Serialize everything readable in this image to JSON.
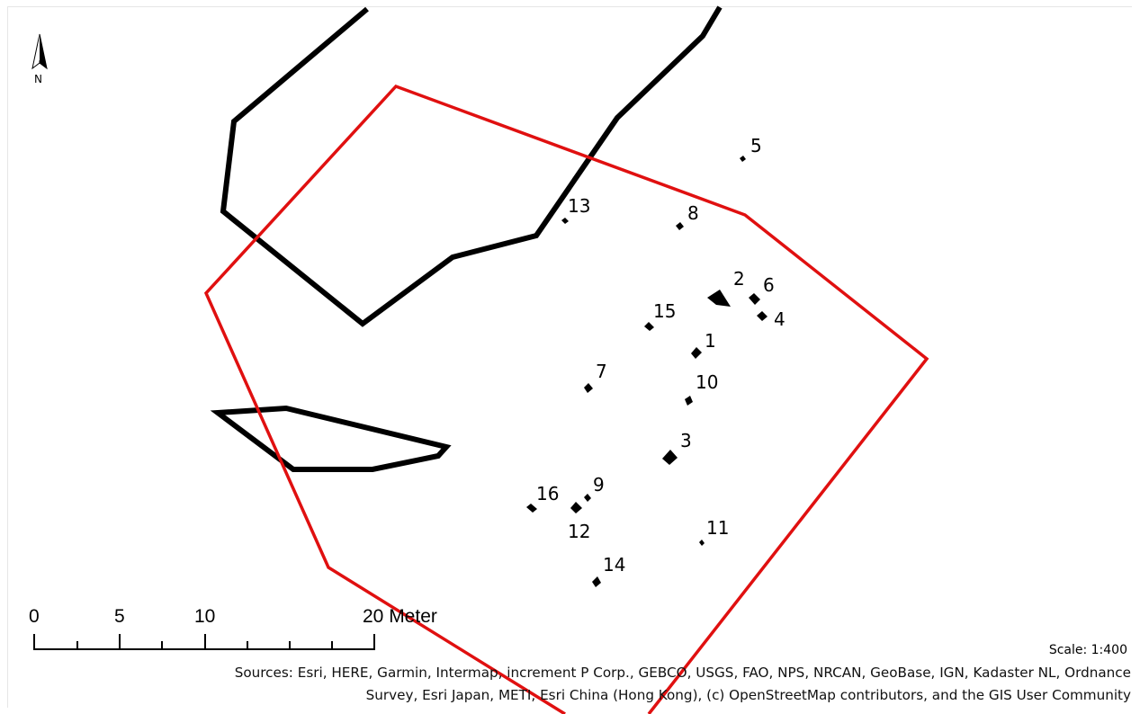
{
  "north_arrow": {
    "label": "N",
    "icon": "north-arrow-icon"
  },
  "colors": {
    "study_area": "#e01010",
    "feature_outline": "#000000",
    "feature_fill": "#000000",
    "background": "#ffffff"
  },
  "features": [
    {
      "id": "1",
      "label": "1"
    },
    {
      "id": "2",
      "label": "2"
    },
    {
      "id": "3",
      "label": "3"
    },
    {
      "id": "4",
      "label": "4"
    },
    {
      "id": "5",
      "label": "5"
    },
    {
      "id": "6",
      "label": "6"
    },
    {
      "id": "7",
      "label": "7"
    },
    {
      "id": "8",
      "label": "8"
    },
    {
      "id": "9",
      "label": "9"
    },
    {
      "id": "10",
      "label": "10"
    },
    {
      "id": "11",
      "label": "11"
    },
    {
      "id": "12",
      "label": "12"
    },
    {
      "id": "13",
      "label": "13"
    },
    {
      "id": "14",
      "label": "14"
    },
    {
      "id": "15",
      "label": "15"
    },
    {
      "id": "16",
      "label": "16"
    }
  ],
  "scale_bar": {
    "tick_labels": [
      "0",
      "5",
      "10",
      "20 Meter"
    ],
    "ratio": "Scale: 1:400"
  },
  "attribution": {
    "line1": "Sources: Esri, HERE, Garmin, Intermap, increment P Corp., GEBCO, USGS, FAO, NPS, NRCAN, GeoBase, IGN, Kadaster NL, Ordnance",
    "line2": "Survey, Esri Japan, METI, Esri China (Hong Kong), (c) OpenStreetMap contributors, and the GIS User Community"
  }
}
